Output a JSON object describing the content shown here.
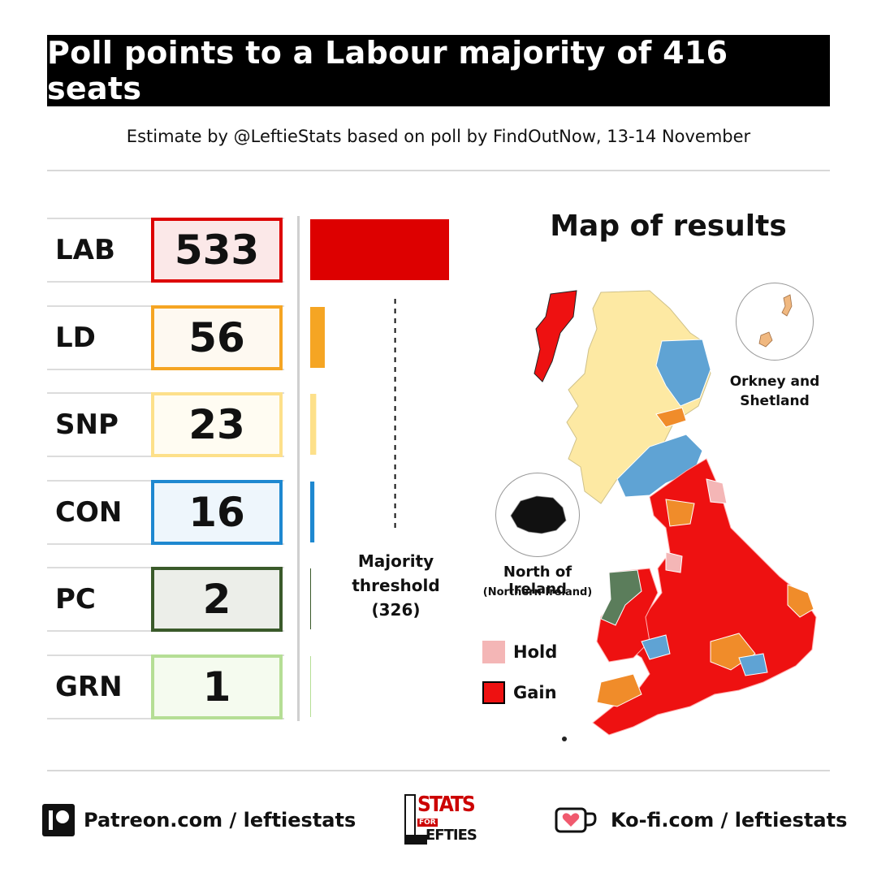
{
  "header": {
    "title": "Poll points to a Labour majority of 416 seats",
    "subtitle": "Estimate by @LeftieStats based on poll by FindOutNow, 13-14 November"
  },
  "chart_data": {
    "type": "bar",
    "orientation": "horizontal",
    "categories": [
      "LAB",
      "LD",
      "SNP",
      "CON",
      "PC",
      "GRN"
    ],
    "values": [
      533,
      56,
      23,
      16,
      2,
      1
    ],
    "colors": {
      "LAB": {
        "bar": "#dd0000",
        "border": "#dd0000",
        "fill": "#fbe8e8"
      },
      "LD": {
        "bar": "#f5a523",
        "border": "#f5a523",
        "fill": "#fef9f1"
      },
      "SNP": {
        "bar": "#fde08a",
        "border": "#fde08a",
        "fill": "#fffcf2"
      },
      "CON": {
        "bar": "#1e88d0",
        "border": "#1e88d0",
        "fill": "#eef6fc"
      },
      "PC": {
        "bar": "#3a5a2a",
        "border": "#3a5a2a",
        "fill": "#eceee9"
      },
      "GRN": {
        "bar": "#b5de95",
        "border": "#b5de95",
        "fill": "#f5fbef"
      }
    },
    "threshold": {
      "value": 326,
      "label": "Majority threshold (326)",
      "line1": "Majority",
      "line2": "threshold",
      "line3": "(326)"
    },
    "xlim": [
      0,
      533
    ],
    "grid": false
  },
  "map": {
    "title": "Map of results",
    "inset_orkney_label_1": "Orkney and",
    "inset_orkney_label_2": "Shetland",
    "inset_ni_label": "North of Ireland",
    "inset_ni_sublabel": "(Northern Ireland)",
    "legend": [
      {
        "label": "Hold",
        "color": "#f4b6b6"
      },
      {
        "label": "Gain",
        "color": "#ee1111"
      }
    ]
  },
  "footer": {
    "patreon": "Patreon.com / leftiestats",
    "kofi": "Ko-fi.com / leftiestats",
    "logo_top": "STATS",
    "logo_for": "FOR",
    "logo_bottom": "EFTIES",
    "logo_l": "L"
  }
}
